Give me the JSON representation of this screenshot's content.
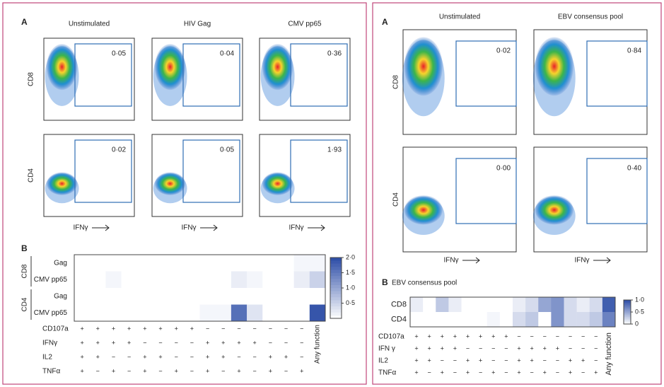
{
  "left": {
    "panel_a": {
      "label": "A",
      "columns": [
        "Unstimulated",
        "HIV Gag",
        "CMV pp65"
      ],
      "rows": [
        "CD8",
        "CD4"
      ],
      "gates": [
        [
          "0·05",
          "0·04",
          "0·36"
        ],
        [
          "0·02",
          "0·05",
          "1·93"
        ]
      ],
      "x_label": "IFNγ"
    },
    "panel_b": {
      "label": "B",
      "groups": [
        {
          "name": "CD8",
          "rows": [
            "Gag",
            "CMV pp65"
          ]
        },
        {
          "name": "CD4",
          "rows": [
            "Gag",
            "CMV pp65"
          ]
        }
      ],
      "functions": [
        "CD107a",
        "IFNγ",
        "IL2",
        "TNFα"
      ],
      "signs": [
        [
          "+",
          "+",
          "+",
          "+",
          "+",
          "+",
          "+",
          "+",
          "−",
          "−",
          "−",
          "−",
          "−",
          "−",
          "−"
        ],
        [
          "+",
          "+",
          "+",
          "+",
          "−",
          "−",
          "−",
          "−",
          "+",
          "+",
          "+",
          "+",
          "−",
          "−",
          "−"
        ],
        [
          "+",
          "+",
          "−",
          "−",
          "+",
          "+",
          "−",
          "−",
          "+",
          "+",
          "−",
          "−",
          "+",
          "+",
          "−"
        ],
        [
          "+",
          "−",
          "+",
          "−",
          "+",
          "−",
          "+",
          "−",
          "+",
          "−",
          "+",
          "−",
          "+",
          "−",
          "+"
        ]
      ],
      "any_label": "Any function",
      "heat": [
        [
          0,
          0,
          0,
          0,
          0,
          0,
          0,
          0,
          0,
          0,
          0,
          0,
          0,
          0,
          0.1,
          0.1
        ],
        [
          0,
          0,
          0.1,
          0,
          0,
          0,
          0,
          0,
          0,
          0,
          0.2,
          0.1,
          0,
          0,
          0.2,
          0.5
        ],
        [
          0,
          0,
          0,
          0,
          0,
          0,
          0,
          0,
          0,
          0,
          0,
          0,
          0,
          0,
          0,
          0
        ],
        [
          0,
          0,
          0,
          0,
          0,
          0,
          0,
          0,
          0.1,
          0.1,
          1.6,
          0.3,
          0,
          0,
          0,
          1.9
        ]
      ],
      "colormap": [
        "#ffffff",
        "#2b4ca6"
      ],
      "clim": [
        0,
        2
      ],
      "cticks": [
        {
          "value": 2,
          "label": "2·0"
        },
        {
          "value": 1.5,
          "label": "1·5"
        },
        {
          "value": 1,
          "label": "1·0"
        },
        {
          "value": 0.5,
          "label": "0·5"
        }
      ]
    }
  },
  "right": {
    "panel_a": {
      "label": "A",
      "columns": [
        "Unstimulated",
        "EBV consensus pool"
      ],
      "rows": [
        "CD8",
        "CD4"
      ],
      "gates": [
        [
          "0·02",
          "0·84"
        ],
        [
          "0·00",
          "0·40"
        ]
      ],
      "x_label": "IFNγ"
    },
    "panel_b": {
      "label": "B",
      "title": "EBV consensus pool",
      "groups": [
        {
          "rows": [
            "CD8",
            "CD4"
          ]
        }
      ],
      "functions": [
        "CD107a",
        "IFN γ",
        "IL2",
        "TNFα"
      ],
      "signs": [
        [
          "+",
          "+",
          "+",
          "+",
          "+",
          "+",
          "+",
          "+",
          "−",
          "−",
          "−",
          "−",
          "−",
          "−",
          "−"
        ],
        [
          "+",
          "+",
          "+",
          "+",
          "−",
          "−",
          "−",
          "−",
          "+",
          "+",
          "+",
          "+",
          "−",
          "−",
          "−"
        ],
        [
          "+",
          "+",
          "−",
          "−",
          "+",
          "+",
          "−",
          "−",
          "+",
          "+",
          "−",
          "−",
          "+",
          "+",
          "−"
        ],
        [
          "+",
          "−",
          "+",
          "−",
          "+",
          "−",
          "+",
          "−",
          "+",
          "−",
          "+",
          "−",
          "+",
          "−",
          "+"
        ]
      ],
      "any_label": "Any function",
      "heat": [
        [
          0.1,
          0,
          0.3,
          0.1,
          0,
          0,
          0,
          0,
          0.1,
          0.2,
          0.5,
          0.6,
          0.2,
          0.1,
          0.2,
          0.9
        ],
        [
          0,
          0,
          0,
          0,
          0,
          0,
          0.05,
          0,
          0.2,
          0.3,
          0,
          0.6,
          0.2,
          0.2,
          0.3,
          0.7
        ]
      ],
      "colormap": [
        "#ffffff",
        "#2b4ca6"
      ],
      "clim": [
        0,
        1
      ],
      "cticks": [
        {
          "value": 1,
          "label": "1·0"
        },
        {
          "value": 0.5,
          "label": "0·5"
        },
        0
      ]
    }
  }
}
